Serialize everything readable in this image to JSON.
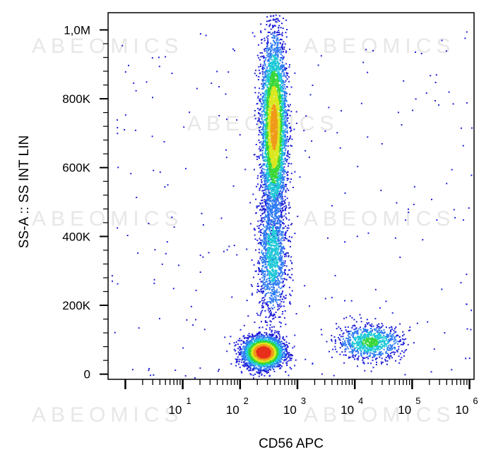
{
  "watermark": "ABEOMICS",
  "chart_data": {
    "type": "scatter",
    "xlabel": "CD56 APC",
    "ylabel": "SS-A :: SS INT LIN",
    "x_scale": "log",
    "xlim": [
      0.5,
      1200000
    ],
    "ylim": [
      -15000,
      1050000
    ],
    "x_ticks": [
      {
        "base": "10",
        "exp": "1"
      },
      {
        "base": "10",
        "exp": "2"
      },
      {
        "base": "10",
        "exp": "3"
      },
      {
        "base": "10",
        "exp": "4"
      },
      {
        "base": "10",
        "exp": "5"
      },
      {
        "base": "10",
        "exp": "6"
      }
    ],
    "y_ticks": [
      {
        "value": 0,
        "label": "0"
      },
      {
        "value": 200000,
        "label": "200K"
      },
      {
        "value": 400000,
        "label": "400K"
      },
      {
        "value": 600000,
        "label": "600K"
      },
      {
        "value": 800000,
        "label": "800K"
      },
      {
        "value": 1000000,
        "label": "1,0M"
      }
    ],
    "density_colors": [
      "#1f1fd8",
      "#2e7cf2",
      "#1fc9d6",
      "#38d638",
      "#d9e81f",
      "#f09a1a",
      "#e8301c"
    ],
    "populations": [
      {
        "x_center": 250,
        "x_log_sd": 0.17,
        "y_center": 65000,
        "y_sd": 22000,
        "count": 3400,
        "density": 1.0
      },
      {
        "x_center": 380,
        "x_log_sd": 0.11,
        "y_center": 720000,
        "y_sd": 130000,
        "count": 4200,
        "density": 0.75
      },
      {
        "x_center": 360,
        "x_log_sd": 0.13,
        "y_center": 350000,
        "y_sd": 100000,
        "count": 1400,
        "density": 0.35
      },
      {
        "x_center": 18000,
        "x_log_sd": 0.28,
        "y_center": 95000,
        "y_sd": 25000,
        "count": 900,
        "density": 0.45
      }
    ]
  }
}
